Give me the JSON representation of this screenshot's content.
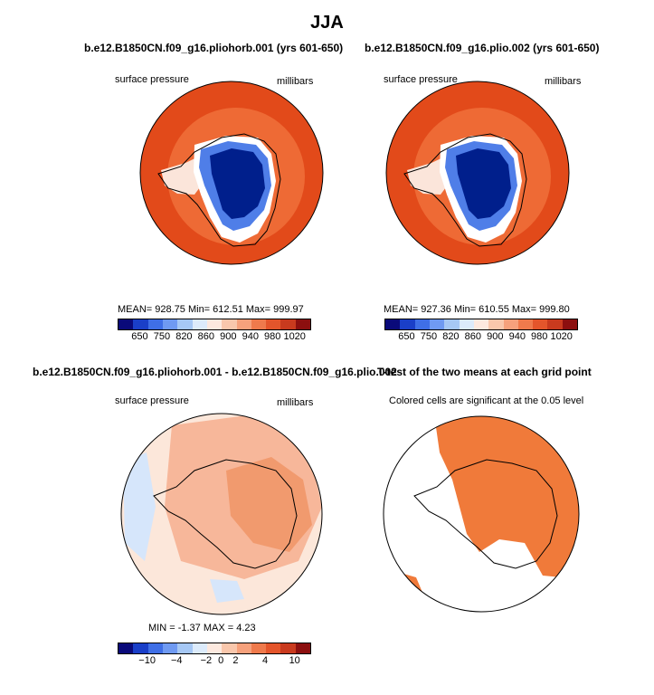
{
  "title": "JJA",
  "panels": {
    "p1": {
      "title": "b.e12.B1850CN.f09_g16.pliohorb.001 (yrs 601-650)",
      "left_label": "surface pressure",
      "right_label": "millibars",
      "stats": "MEAN= 928.75   Min= 612.51   Max= 999.97"
    },
    "p2": {
      "title": "b.e12.B1850CN.f09_g16.plio.002 (yrs 601-650)",
      "left_label": "surface pressure",
      "right_label": "millibars",
      "stats": "MEAN= 927.36   Min= 610.55   Max= 999.80"
    },
    "p3": {
      "title": "b.e12.B1850CN.f09_g16.pliohorb.001 - b.e12.B1850CN.f09_g16.plio.002",
      "left_label": "surface pressure",
      "right_label": "millibars",
      "stats": "MIN =  -1.37  MAX =   4.23"
    },
    "p4": {
      "title": "T-test of the two means at each grid point",
      "subtitle": "Colored cells are significant at the 0.05 level"
    }
  },
  "colorbar_abs": {
    "colors": [
      "#0a0a7a",
      "#1a3fc8",
      "#3f6fe6",
      "#6f9af2",
      "#a6c8f5",
      "#dcebfb",
      "#fde9df",
      "#f9c7ac",
      "#f6a17c",
      "#ef7a4c",
      "#e4552b",
      "#c93a1e",
      "#8c0f0f"
    ],
    "ticks": [
      "650",
      "750",
      "820",
      "860",
      "900",
      "940",
      "980",
      "1020"
    ]
  },
  "colorbar_diff": {
    "colors": [
      "#0a0a7a",
      "#1a3fc8",
      "#3f6fe6",
      "#6f9af2",
      "#a6c8f5",
      "#dcebfb",
      "#fde9df",
      "#f9c7ac",
      "#f6a17c",
      "#ef7a4c",
      "#e4552b",
      "#c93a1e",
      "#8c0f0f"
    ],
    "ticks": [
      "−10",
      "−4",
      "−2",
      "0",
      "2",
      "4",
      "10"
    ]
  },
  "colors": {
    "ocean_pressure": "#e24a1a",
    "ring_pressure": "#ee6a35",
    "high_plateau": "#001f8c",
    "significant": "#f07a3a",
    "diff_pos": "#f7b79a",
    "diff_pos_strong": "#f19a6e",
    "diff_neg": "#d6e6fb",
    "diff_near_zero": "#fce7da"
  }
}
